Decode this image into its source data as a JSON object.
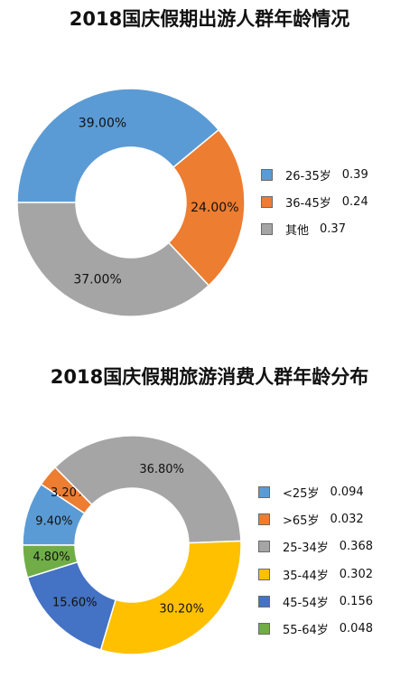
{
  "chart_data": [
    {
      "type": "pie",
      "title": "2018国庆假期出游人群年龄情况",
      "legend_position": "right",
      "donut": true,
      "slices": [
        {
          "label": "26-35岁",
          "value": 0.39,
          "data_label": "39.00%",
          "color": "#5B9BD5"
        },
        {
          "label": "36-45岁",
          "value": 0.24,
          "data_label": "24.00%",
          "color": "#ED7D31"
        },
        {
          "label": "其他",
          "value": 0.37,
          "data_label": "37.00%",
          "color": "#A5A5A5"
        }
      ]
    },
    {
      "type": "pie",
      "title": "2018国庆假期旅游消费人群年龄分布",
      "legend_position": "right",
      "donut": true,
      "slices": [
        {
          "label": "<25岁",
          "value": 0.094,
          "data_label": "9.40%",
          "color": "#5B9BD5"
        },
        {
          "label": ">65岁",
          "value": 0.032,
          "data_label": "3.20%",
          "color": "#ED7D31"
        },
        {
          "label": "25-34岁",
          "value": 0.368,
          "data_label": "36.80%",
          "color": "#A5A5A5"
        },
        {
          "label": "35-44岁",
          "value": 0.302,
          "data_label": "30.20%",
          "color": "#FFC000"
        },
        {
          "label": "45-54岁",
          "value": 0.156,
          "data_label": "15.60%",
          "color": "#4472C4"
        },
        {
          "label": "55-64岁",
          "value": 0.048,
          "data_label": "4.80%",
          "color": "#70AD47"
        }
      ]
    }
  ]
}
